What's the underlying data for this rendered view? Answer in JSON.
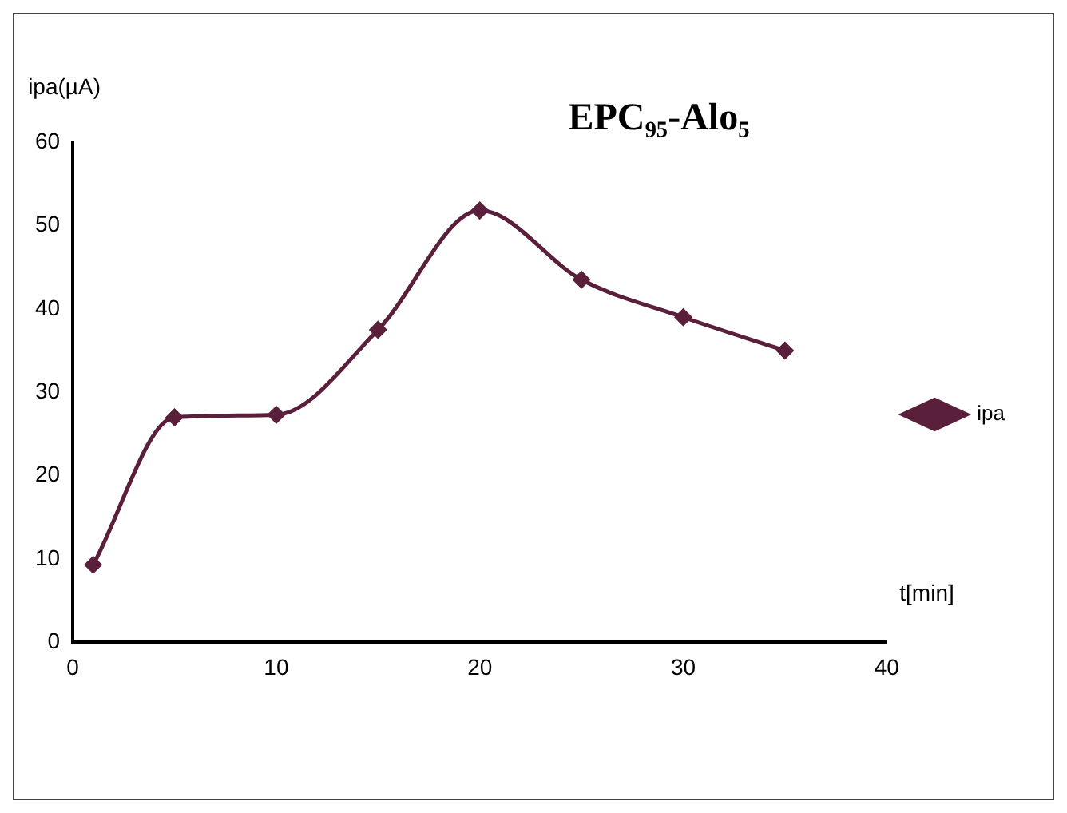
{
  "chart_data": {
    "type": "line",
    "title": "EPC₉₅-Alo₅",
    "xlabel": "t[min]",
    "ylabel": "ipa(µA)",
    "x": [
      1,
      5,
      10,
      15,
      20,
      25,
      30,
      35
    ],
    "series": [
      {
        "name": "ipa",
        "color": "#5a1f3a",
        "values": [
          9.3,
          27,
          27.3,
          37.5,
          51.8,
          43.5,
          39,
          35
        ]
      }
    ],
    "xlim": [
      0,
      40
    ],
    "xticks": [
      0,
      10,
      20,
      30,
      40
    ],
    "ylim": [
      0,
      60
    ],
    "yticks": [
      0,
      10,
      20,
      30,
      40,
      50,
      60
    ],
    "grid": false,
    "legend": "right",
    "marker": "diamond",
    "line_style": "solid"
  }
}
